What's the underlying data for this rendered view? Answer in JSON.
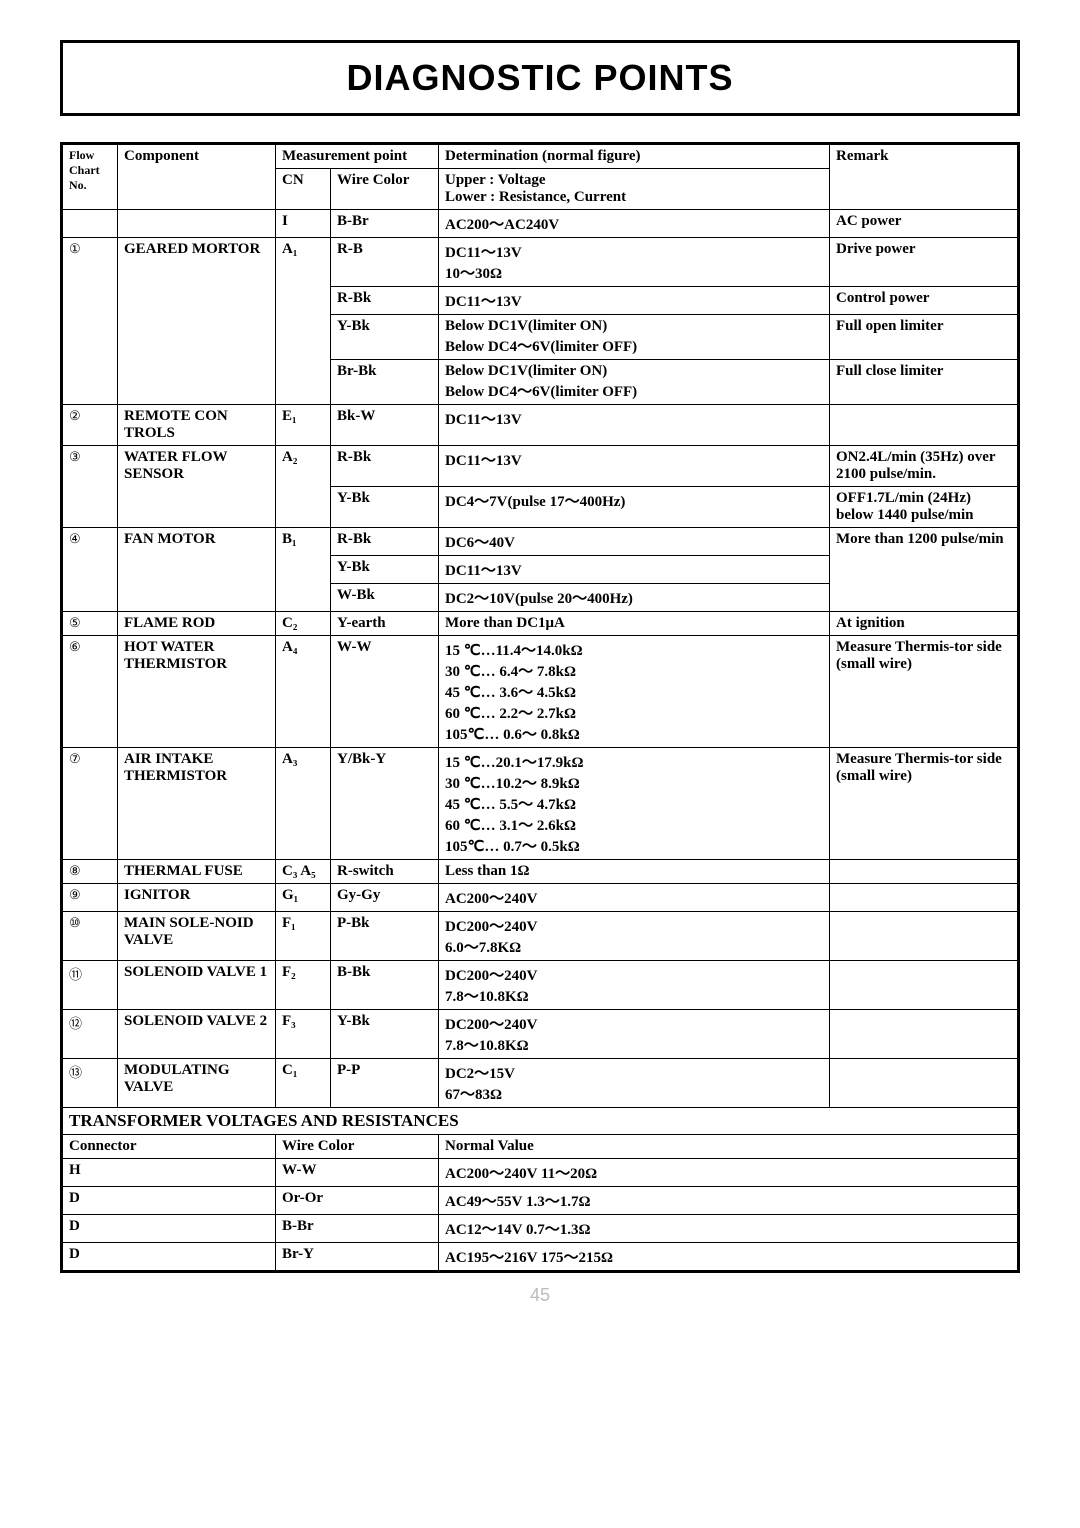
{
  "title": "DIAGNOSTIC POINTS",
  "page_number": "45",
  "hdr": {
    "flow": "Flow Chart No.",
    "component": "Component",
    "meas_point": "Measurement point",
    "cn": "CN",
    "wire": "Wire Color",
    "det_top": "Determination (normal figure)",
    "det_u": "Upper : Voltage",
    "det_l": "Lower : Resistance, Current",
    "remark": "Remark"
  },
  "rows": [
    {
      "flow": "",
      "comp": "",
      "cn": "I",
      "wire": "B-Br",
      "det": "AC200～AC240V",
      "rem": "AC power"
    },
    {
      "flow": "①",
      "comp": "GEARED MORTOR",
      "cn": "A₁",
      "wire": "R-B",
      "det": "DC11～13V\n10～30Ω",
      "rem": "Drive power",
      "flow_rs": 4,
      "comp_rs": 4,
      "cn_rs": 4
    },
    {
      "wire": "R-Bk",
      "det": "DC11～13V",
      "rem": "Control power"
    },
    {
      "wire": "Y-Bk",
      "det": "Below DC1V(limiter ON)\nBelow DC4～6V(limiter OFF)",
      "rem": "Full open limiter"
    },
    {
      "wire": "Br-Bk",
      "det": "Below DC1V(limiter ON)\nBelow DC4～6V(limiter OFF)",
      "rem": "Full close limiter"
    },
    {
      "flow": "②",
      "comp": "REMOTE CON TROLS",
      "cn": "E₁",
      "wire": "Bk-W",
      "det": "DC11～13V",
      "rem": ""
    },
    {
      "flow": "③",
      "comp": "WATER FLOW SENSOR",
      "cn": "A₂",
      "wire": "R-Bk",
      "det": "DC11～13V",
      "rem": "ON2.4L/min (35Hz) over 2100 pulse/min.",
      "flow_rs": 2,
      "comp_rs": 2,
      "cn_rs": 2
    },
    {
      "wire": "Y-Bk",
      "det": "DC4～7V(pulse 17～400Hz)",
      "rem": "OFF1.7L/min (24Hz) below 1440 pulse/min"
    },
    {
      "flow": "④",
      "comp": "FAN MOTOR",
      "cn": "B₁",
      "wire": "R-Bk",
      "det": "DC6～40V",
      "rem": "More than 1200 pulse/min",
      "flow_rs": 3,
      "comp_rs": 3,
      "cn_rs": 3,
      "rem_rs": 3
    },
    {
      "wire": "Y-Bk",
      "det": "DC11～13V"
    },
    {
      "wire": "W-Bk",
      "det": "DC2～10V(pulse 20～400Hz)"
    },
    {
      "flow": "⑤",
      "comp": "FLAME ROD",
      "cn": "C₂",
      "wire": "Y-earth",
      "det": "More than DC1μA",
      "rem": "At ignition"
    },
    {
      "flow": "⑥",
      "comp": "HOT WATER THERMISTOR",
      "cn": "A₄",
      "wire": "W-W",
      "det": "15 ℃…11.4～14.0kΩ\n30 ℃… 6.4～ 7.8kΩ\n45 ℃… 3.6～ 4.5kΩ\n60 ℃… 2.2～ 2.7kΩ\n105℃… 0.6～ 0.8kΩ",
      "rem": "Measure Thermis-tor side (small wire)"
    },
    {
      "flow": "⑦",
      "comp": "AIR INTAKE THERMISTOR",
      "cn": "A₃",
      "wire": "Y/Bk-Y",
      "det": "15 ℃…20.1～17.9kΩ\n30 ℃…10.2～ 8.9kΩ\n45 ℃… 5.5～ 4.7kΩ\n60 ℃… 3.1～ 2.6kΩ\n105℃… 0.7～ 0.5kΩ",
      "rem": "Measure Thermis-tor side (small wire)"
    },
    {
      "flow": "⑧",
      "comp": "THERMAL FUSE",
      "cn": "C₃ A₅",
      "wire": "R-switch",
      "det": "Less than 1Ω",
      "rem": ""
    },
    {
      "flow": "⑨",
      "comp": "IGNITOR",
      "cn": "G₁",
      "wire": "Gy-Gy",
      "det": "AC200～240V",
      "rem": ""
    },
    {
      "flow": "⑩",
      "comp": "MAIN SOLE-NOID VALVE",
      "cn": "F₁",
      "wire": "P-Bk",
      "det": "DC200～240V\n6.0～7.8KΩ",
      "rem": ""
    },
    {
      "flow": "⑪",
      "comp": "SOLENOID VALVE 1",
      "cn": "F₂",
      "wire": "B-Bk",
      "det": "DC200～240V\n7.8～10.8KΩ",
      "rem": ""
    },
    {
      "flow": "⑫",
      "comp": "SOLENOID VALVE 2",
      "cn": "F₃",
      "wire": "Y-Bk",
      "det": "DC200～240V\n7.8～10.8KΩ",
      "rem": ""
    },
    {
      "flow": "⑬",
      "comp": "MODULATING VALVE",
      "cn": "C₁",
      "wire": "P-P",
      "det": "DC2～15V\n67～83Ω",
      "rem": ""
    }
  ],
  "section2_title": "TRANSFORMER VOLTAGES AND RESISTANCES",
  "s2hdr": {
    "conn": "Connector",
    "wire": "Wire Color",
    "val": "Normal Value"
  },
  "s2rows": [
    {
      "conn": "H",
      "wire": "W-W",
      "val": "AC200～240V   11～20Ω"
    },
    {
      "conn": "D",
      "wire": "Or-Or",
      "val": "AC49～55V   1.3～1.7Ω"
    },
    {
      "conn": "D",
      "wire": "B-Br",
      "val": "AC12～14V   0.7～1.3Ω"
    },
    {
      "conn": "D",
      "wire": "Br-Y",
      "val": "AC195～216V  175～215Ω"
    }
  ]
}
